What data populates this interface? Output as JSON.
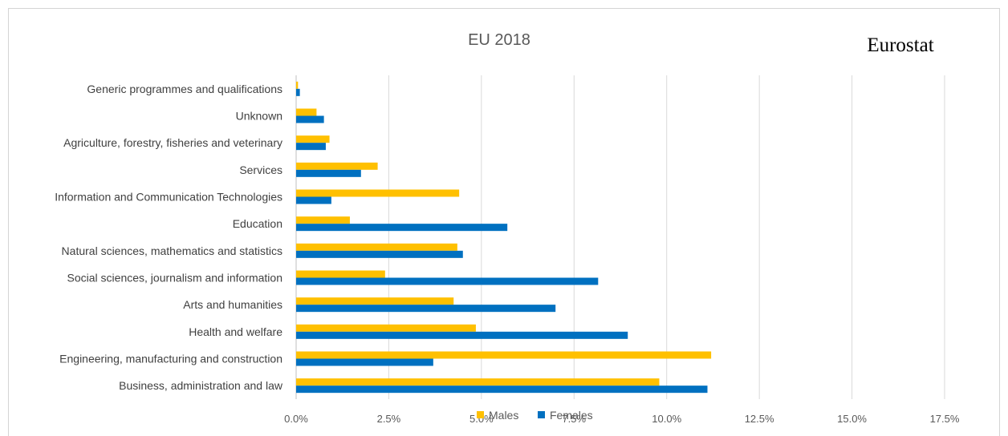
{
  "chart_data": {
    "type": "bar",
    "orientation": "horizontal",
    "title": "EU 2018",
    "source_label": "Eurostat",
    "categories": [
      "Generic programmes and qualifications",
      "Unknown",
      "Agriculture, forestry, fisheries and veterinary",
      "Services",
      "Information and Communication Technologies",
      "Education",
      "Natural sciences, mathematics and statistics",
      "Social sciences, journalism and information",
      "Arts and humanities",
      "Health and welfare",
      "Engineering, manufacturing and construction",
      "Business, administration and law"
    ],
    "series": [
      {
        "name": "Males",
        "color": "#FFC000",
        "values": [
          0.05,
          0.55,
          0.9,
          2.2,
          4.4,
          1.45,
          4.35,
          2.4,
          4.25,
          4.85,
          11.2,
          9.8
        ]
      },
      {
        "name": "Females",
        "color": "#0070C0",
        "values": [
          0.1,
          0.75,
          0.8,
          1.75,
          0.95,
          5.7,
          4.5,
          8.15,
          7.0,
          8.95,
          3.7,
          11.1
        ]
      }
    ],
    "xlim": [
      0,
      17.5
    ],
    "xticks": [
      "0.0%",
      "2.5%",
      "5.0%",
      "7.5%",
      "10.0%",
      "12.5%",
      "15.0%",
      "17.5%"
    ],
    "grid": true,
    "legend_position": "bottom"
  }
}
